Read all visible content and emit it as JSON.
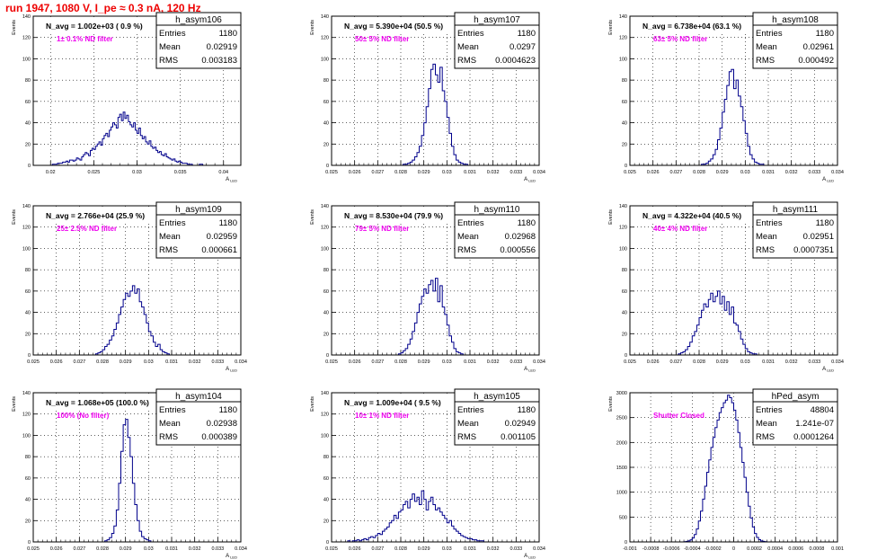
{
  "page_title": "run 1947,  1080 V, I_pe ≈ 0.3 nA, 120 Hz",
  "colors": {
    "histogram": "#00008b",
    "title_red": "#ee0000",
    "note_magenta": "#ee00ee",
    "grid": "#000000"
  },
  "chart_data": [
    {
      "type": "bar",
      "name": "h_asym106",
      "stats": {
        "entries": "1180",
        "mean": "0.02919",
        "rms": "0.003183"
      },
      "n_avg": "N_avg = 1.002e+03 ( 0.9 %)",
      "note": "1± 0.1% ND filter",
      "ylabel": "Events",
      "xlabel": "A_LED",
      "xlim": [
        0.018,
        0.042
      ],
      "ylim": [
        0,
        140
      ],
      "xticks": [
        "0.02",
        "0.025",
        "0.03",
        "0.035",
        "0.04"
      ],
      "xtick_values": [
        0.02,
        0.025,
        0.03,
        0.035,
        0.04
      ],
      "yticks": [
        "0",
        "20",
        "40",
        "60",
        "80",
        "100",
        "120",
        "140"
      ],
      "ytick_values": [
        0,
        20,
        40,
        60,
        80,
        100,
        120,
        140
      ],
      "x_start": 0.018,
      "bin_width": 0.0002,
      "values": [
        0,
        0,
        0,
        0,
        0,
        0,
        0,
        0,
        0,
        0,
        0,
        1,
        1,
        1,
        2,
        2,
        2,
        3,
        3,
        4,
        3,
        5,
        5,
        4,
        5,
        7,
        6,
        5,
        8,
        10,
        12,
        11,
        9,
        14,
        16,
        15,
        18,
        20,
        22,
        19,
        25,
        28,
        30,
        27,
        33,
        36,
        40,
        38,
        35,
        45,
        48,
        42,
        50,
        44,
        47,
        41,
        38,
        36,
        40,
        33,
        30,
        35,
        28,
        25,
        27,
        22,
        20,
        23,
        18,
        16,
        17,
        14,
        12,
        13,
        10,
        9,
        11,
        8,
        7,
        6,
        5,
        6,
        4,
        3,
        4,
        3,
        2,
        2,
        2,
        1,
        1,
        1,
        0,
        0,
        0,
        0,
        1,
        1,
        0,
        0,
        0,
        0,
        0,
        0,
        0,
        0,
        0,
        0,
        0,
        0
      ]
    },
    {
      "type": "bar",
      "name": "h_asym107",
      "stats": {
        "entries": "1180",
        "mean": "0.0297",
        "rms": "0.0004623"
      },
      "n_avg": "N_avg = 5.390e+04 (50.5 %)",
      "note": "50± 5% ND filter",
      "ylabel": "Events",
      "xlabel": "A_LED",
      "xlim": [
        0.025,
        0.034
      ],
      "ylim": [
        0,
        140
      ],
      "xticks": [
        "0.025",
        "0.026",
        "0.027",
        "0.028",
        "0.029",
        "0.03",
        "0.031",
        "0.032",
        "0.033",
        "0.034"
      ],
      "xtick_values": [
        0.025,
        0.026,
        0.027,
        0.028,
        0.029,
        0.03,
        0.031,
        0.032,
        0.033,
        0.034
      ],
      "yticks": [
        "0",
        "20",
        "40",
        "60",
        "80",
        "100",
        "120",
        "140"
      ],
      "ytick_values": [
        0,
        20,
        40,
        60,
        80,
        100,
        120,
        140
      ],
      "x_start": 0.028,
      "bin_width": 0.0001,
      "values": [
        0,
        1,
        1,
        2,
        3,
        5,
        8,
        12,
        18,
        28,
        40,
        55,
        72,
        90,
        95,
        85,
        78,
        92,
        70,
        60,
        45,
        30,
        18,
        10,
        5,
        3,
        2,
        1,
        1,
        0
      ]
    },
    {
      "type": "bar",
      "name": "h_asym108",
      "stats": {
        "entries": "1180",
        "mean": "0.02961",
        "rms": "0.000492"
      },
      "n_avg": "N_avg = 6.738e+04 (63.1 %)",
      "note": "63± 5% ND filter",
      "ylabel": "Events",
      "xlabel": "A_LED",
      "xlim": [
        0.025,
        0.034
      ],
      "ylim": [
        0,
        140
      ],
      "xticks": [
        "0.025",
        "0.026",
        "0.027",
        "0.028",
        "0.029",
        "0.03",
        "0.031",
        "0.032",
        "0.033",
        "0.034"
      ],
      "xtick_values": [
        0.025,
        0.026,
        0.027,
        0.028,
        0.029,
        0.03,
        0.031,
        0.032,
        0.033,
        0.034
      ],
      "yticks": [
        "0",
        "20",
        "40",
        "60",
        "80",
        "100",
        "120",
        "140"
      ],
      "ytick_values": [
        0,
        20,
        40,
        60,
        80,
        100,
        120,
        140
      ],
      "x_start": 0.028,
      "bin_width": 0.0001,
      "values": [
        0,
        1,
        1,
        2,
        4,
        6,
        10,
        15,
        24,
        35,
        50,
        62,
        75,
        88,
        90,
        72,
        80,
        65,
        55,
        42,
        30,
        18,
        10,
        6,
        3,
        2,
        1,
        1,
        0,
        0
      ]
    },
    {
      "type": "bar",
      "name": "h_asym109",
      "stats": {
        "entries": "1180",
        "mean": "0.02959",
        "rms": "0.000661"
      },
      "n_avg": "N_avg = 2.766e+04 (25.9 %)",
      "note": "25± 2.5% ND filter",
      "ylabel": "Events",
      "xlabel": "A_LED",
      "xlim": [
        0.025,
        0.034
      ],
      "ylim": [
        0,
        140
      ],
      "xticks": [
        "0.025",
        "0.026",
        "0.027",
        "0.028",
        "0.029",
        "0.03",
        "0.031",
        "0.032",
        "0.033",
        "0.034"
      ],
      "xtick_values": [
        0.025,
        0.026,
        0.027,
        0.028,
        0.029,
        0.03,
        0.031,
        0.032,
        0.033,
        0.034
      ],
      "yticks": [
        "0",
        "20",
        "40",
        "60",
        "80",
        "100",
        "120",
        "140"
      ],
      "ytick_values": [
        0,
        20,
        40,
        60,
        80,
        100,
        120,
        140
      ],
      "x_start": 0.0276,
      "bin_width": 0.0001,
      "values": [
        0,
        1,
        2,
        3,
        5,
        8,
        10,
        14,
        18,
        24,
        30,
        38,
        45,
        52,
        58,
        55,
        60,
        65,
        58,
        62,
        50,
        45,
        38,
        30,
        22,
        18,
        12,
        8,
        10,
        5,
        3,
        2,
        1,
        0,
        0,
        0
      ]
    },
    {
      "type": "bar",
      "name": "h_asym110",
      "stats": {
        "entries": "1180",
        "mean": "0.02968",
        "rms": "0.000556"
      },
      "n_avg": "N_avg = 8.530e+04 (79.9 %)",
      "note": "79± 5% ND filter",
      "ylabel": "Events",
      "xlabel": "A_LED",
      "xlim": [
        0.025,
        0.034
      ],
      "ylim": [
        0,
        140
      ],
      "xticks": [
        "0.025",
        "0.026",
        "0.027",
        "0.028",
        "0.029",
        "0.03",
        "0.031",
        "0.032",
        "0.033",
        "0.034"
      ],
      "xtick_values": [
        0.025,
        0.026,
        0.027,
        0.028,
        0.029,
        0.03,
        0.031,
        0.032,
        0.033,
        0.034
      ],
      "yticks": [
        "0",
        "20",
        "40",
        "60",
        "80",
        "100",
        "120",
        "140"
      ],
      "ytick_values": [
        0,
        20,
        40,
        60,
        80,
        100,
        120,
        140
      ],
      "x_start": 0.0278,
      "bin_width": 0.0001,
      "values": [
        0,
        1,
        2,
        4,
        6,
        10,
        15,
        22,
        30,
        40,
        48,
        55,
        62,
        58,
        66,
        70,
        60,
        72,
        50,
        65,
        45,
        38,
        28,
        18,
        12,
        6,
        3,
        2,
        1,
        0,
        0,
        0
      ]
    },
    {
      "type": "bar",
      "name": "h_asym111",
      "stats": {
        "entries": "1180",
        "mean": "0.02951",
        "rms": "0.0007351"
      },
      "n_avg": "N_avg = 4.322e+04 (40.5 %)",
      "note": "40± 4% ND filter",
      "ylabel": "Events",
      "xlabel": "A_LED",
      "xlim": [
        0.025,
        0.034
      ],
      "ylim": [
        0,
        140
      ],
      "xticks": [
        "0.025",
        "0.026",
        "0.027",
        "0.028",
        "0.029",
        "0.03",
        "0.031",
        "0.032",
        "0.033",
        "0.034"
      ],
      "xtick_values": [
        0.025,
        0.026,
        0.027,
        0.028,
        0.029,
        0.03,
        0.031,
        0.032,
        0.033,
        0.034
      ],
      "yticks": [
        "0",
        "20",
        "40",
        "60",
        "80",
        "100",
        "120",
        "140"
      ],
      "ytick_values": [
        0,
        20,
        40,
        60,
        80,
        100,
        120,
        140
      ],
      "x_start": 0.027,
      "bin_width": 0.0001,
      "values": [
        0,
        1,
        2,
        3,
        5,
        8,
        12,
        18,
        22,
        28,
        35,
        42,
        48,
        45,
        52,
        58,
        50,
        55,
        60,
        48,
        55,
        42,
        50,
        38,
        45,
        30,
        28,
        22,
        15,
        10,
        6,
        3,
        2,
        1,
        1,
        0
      ]
    },
    {
      "type": "bar",
      "name": "h_asym104",
      "stats": {
        "entries": "1180",
        "mean": "0.02938",
        "rms": "0.000389"
      },
      "n_avg": "N_avg = 1.068e+05 (100.0 %)",
      "note": "100% (No filter)",
      "ylabel": "Events",
      "xlabel": "A_LED",
      "xlim": [
        0.025,
        0.034
      ],
      "ylim": [
        0,
        140
      ],
      "xticks": [
        "0.025",
        "0.026",
        "0.027",
        "0.028",
        "0.029",
        "0.03",
        "0.031",
        "0.032",
        "0.033",
        "0.034"
      ],
      "xtick_values": [
        0.025,
        0.026,
        0.027,
        0.028,
        0.029,
        0.03,
        0.031,
        0.032,
        0.033,
        0.034
      ],
      "yticks": [
        "0",
        "20",
        "40",
        "60",
        "80",
        "100",
        "120",
        "140"
      ],
      "ytick_values": [
        0,
        20,
        40,
        60,
        80,
        100,
        120,
        140
      ],
      "x_start": 0.028,
      "bin_width": 0.0001,
      "values": [
        0,
        1,
        2,
        4,
        8,
        15,
        30,
        55,
        85,
        110,
        115,
        98,
        80,
        55,
        35,
        20,
        10,
        5,
        3,
        2,
        1,
        0,
        0,
        0
      ]
    },
    {
      "type": "bar",
      "name": "h_asym105",
      "stats": {
        "entries": "1180",
        "mean": "0.02949",
        "rms": "0.001105"
      },
      "n_avg": "N_avg = 1.009e+04 ( 9.5 %)",
      "note": "10± 1% ND filter",
      "ylabel": "Events",
      "xlabel": "A_LED",
      "xlim": [
        0.025,
        0.034
      ],
      "ylim": [
        0,
        140
      ],
      "xticks": [
        "0.025",
        "0.026",
        "0.027",
        "0.028",
        "0.029",
        "0.03",
        "0.031",
        "0.032",
        "0.033",
        "0.034"
      ],
      "xtick_values": [
        0.025,
        0.026,
        0.027,
        0.028,
        0.029,
        0.03,
        0.031,
        0.032,
        0.033,
        0.034
      ],
      "yticks": [
        "0",
        "20",
        "40",
        "60",
        "80",
        "100",
        "120",
        "140"
      ],
      "ytick_values": [
        0,
        20,
        40,
        60,
        80,
        100,
        120,
        140
      ],
      "x_start": 0.0255,
      "bin_width": 0.0001,
      "values": [
        0,
        0,
        1,
        0,
        1,
        1,
        2,
        1,
        2,
        3,
        2,
        4,
        5,
        4,
        6,
        8,
        7,
        10,
        12,
        14,
        18,
        20,
        25,
        22,
        28,
        30,
        35,
        38,
        32,
        40,
        45,
        38,
        42,
        35,
        48,
        40,
        30,
        38,
        42,
        35,
        30,
        32,
        28,
        25,
        22,
        18,
        20,
        15,
        12,
        10,
        8,
        6,
        5,
        4,
        3,
        3,
        2,
        2,
        1,
        1,
        1,
        0,
        0,
        0
      ]
    },
    {
      "type": "bar",
      "name": "hPed_asym",
      "stats": {
        "entries": "48804",
        "mean": "1.241e-07",
        "rms": "0.0001264"
      },
      "n_avg": "",
      "note": "Shutter Closed",
      "ylabel": "Events",
      "xlabel": "",
      "xlim": [
        -0.001,
        0.001
      ],
      "ylim": [
        0,
        3000
      ],
      "xticks": [
        "-0.001",
        "-0.0008",
        "-0.0006",
        "-0.0004",
        "-0.0002",
        "0",
        "0.0002",
        "0.0004",
        "0.0006",
        "0.0008",
        "0.001"
      ],
      "xtick_values": [
        -0.001,
        -0.0008,
        -0.0006,
        -0.0004,
        -0.0002,
        0,
        0.0002,
        0.0004,
        0.0006,
        0.0008,
        0.001
      ],
      "yticks": [
        "0",
        "500",
        "1000",
        "1500",
        "2000",
        "2500",
        "3000"
      ],
      "ytick_values": [
        0,
        500,
        1000,
        1500,
        2000,
        2500,
        3000
      ],
      "x_start": -0.0005,
      "bin_width": 2e-05,
      "values": [
        0,
        5,
        10,
        20,
        40,
        80,
        150,
        260,
        420,
        620,
        860,
        1120,
        1400,
        1650,
        1900,
        2100,
        2300,
        2450,
        2600,
        2700,
        2800,
        2850,
        2950,
        2900,
        2800,
        2650,
        2450,
        2200,
        1900,
        1600,
        1300,
        1000,
        720,
        480,
        300,
        170,
        90,
        45,
        20,
        10,
        5,
        0,
        0,
        0,
        0,
        0,
        0,
        0,
        0,
        0
      ]
    }
  ]
}
